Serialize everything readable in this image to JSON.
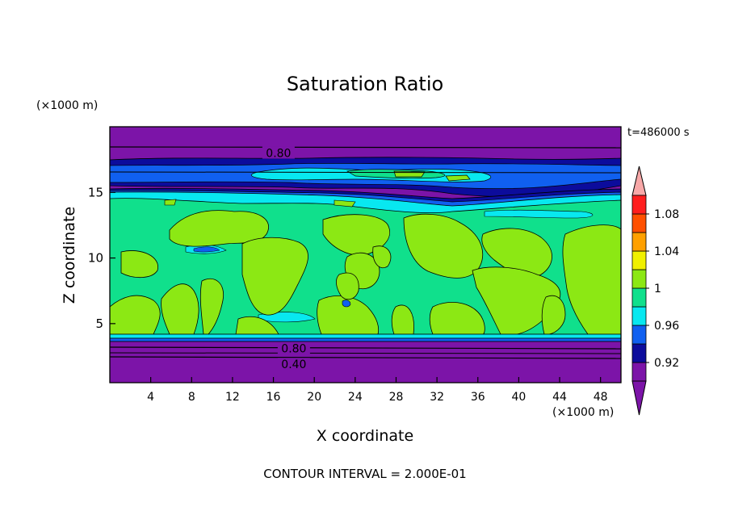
{
  "chart_data": {
    "type": "heatmap",
    "title": "Saturation Ratio",
    "xlabel": "X coordinate",
    "ylabel": "Z coordinate",
    "x_unit": "(×1000 m)",
    "y_unit": "(×1000 m)",
    "time_label": "t=486000 s",
    "footer": "CONTOUR INTERVAL = 2.000E-01",
    "xlim": [
      0,
      50
    ],
    "ylim": [
      0.5,
      20
    ],
    "x_ticks": [
      4,
      8,
      12,
      16,
      20,
      24,
      28,
      32,
      36,
      40,
      44,
      48
    ],
    "y_ticks": [
      5,
      10,
      15
    ],
    "contour_labels": [
      {
        "text": "0.80",
        "x": 16.5,
        "y": 18.0
      },
      {
        "text": "0.80",
        "x": 18.0,
        "y": 3.1
      },
      {
        "text": "0.40",
        "x": 18.0,
        "y": 1.9
      }
    ],
    "colorbar": {
      "levels": [
        0.9,
        0.92,
        0.94,
        0.96,
        0.98,
        1.0,
        1.02,
        1.04,
        1.06,
        1.08,
        1.1
      ],
      "tick_labels": [
        "0.92",
        "0.96",
        "1",
        "1.04",
        "1.08"
      ],
      "colors": [
        "#7c14a8",
        "#0c0c9c",
        "#1060f0",
        "#08e8f0",
        "#10e08c",
        "#8ce814",
        "#f0f000",
        "#ffa000",
        "#ff5000",
        "#ff1e1e"
      ],
      "under_color": "#7c14a8",
      "over_color": "#f8a8a8"
    }
  }
}
